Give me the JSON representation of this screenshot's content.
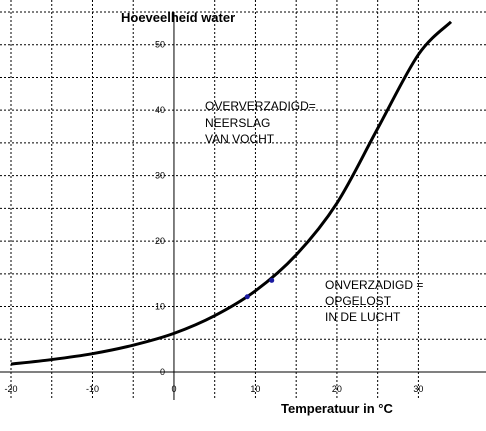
{
  "chart_data": {
    "type": "line",
    "title": "",
    "ylabel": "Hoeveelheid water",
    "xlabel": "Temperatuur in °C",
    "xlim": [
      -20,
      34
    ],
    "ylim": [
      0,
      55
    ],
    "x_ticks": [
      "-20",
      "-10",
      "0",
      "10",
      "20",
      "30"
    ],
    "y_ticks": [
      "0",
      "10",
      "20",
      "30",
      "40",
      "50"
    ],
    "grid": true,
    "series": [
      {
        "x": [
          -20,
          -15,
          -10,
          -5,
          0,
          5,
          10,
          15,
          20,
          25,
          30,
          34
        ],
        "y": [
          1.2,
          1.9,
          2.8,
          4.1,
          5.9,
          8.6,
          12.4,
          17.9,
          25.8,
          37.2,
          48.5,
          53.5
        ]
      }
    ],
    "points": [
      {
        "x": 9,
        "y": 11.5
      },
      {
        "x": 12,
        "y": 14.0
      }
    ],
    "annotations": {
      "above": [
        "OVERVERZADIGD=",
        "NEERSLAG",
        "VAN VOCHT"
      ],
      "below": [
        "ONVERZADIGD =",
        "OPGELOST",
        "IN DE LUCHT"
      ]
    },
    "colors": {
      "curve": "#000000",
      "points": "#1a1aa0",
      "grid": "#000000"
    }
  }
}
